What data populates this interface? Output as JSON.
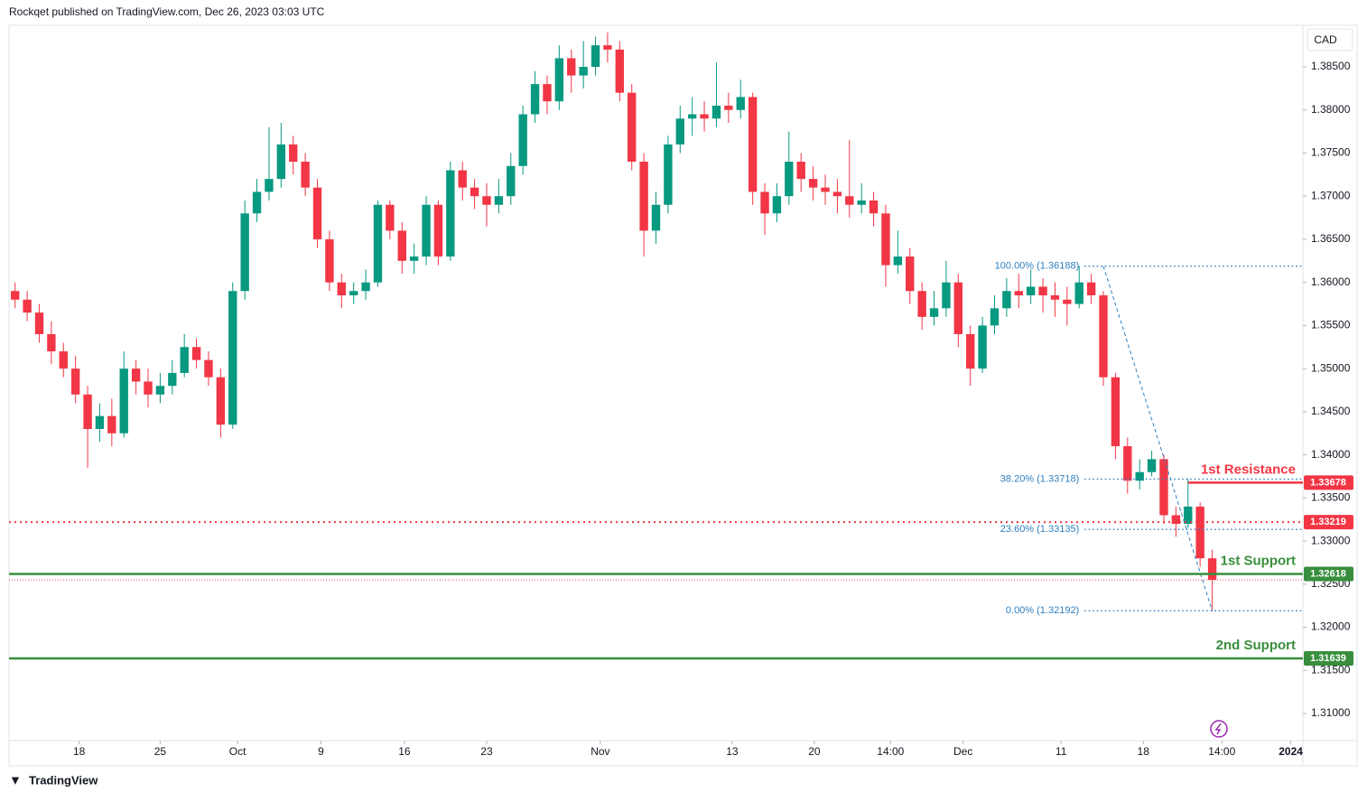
{
  "header": "Rockqet published on TradingView.com, Dec 26, 2023 03:03 UTC",
  "footer": "TradingView",
  "chart_data": {
    "type": "candlestick",
    "currency": "CAD",
    "up_color": "#089981",
    "down_color": "#f23645",
    "ylim": [
      1.30686,
      1.38982
    ],
    "yticks": [
      {
        "value": 1.385,
        "label": "1.38500"
      },
      {
        "value": 1.38,
        "label": "1.38000"
      },
      {
        "value": 1.375,
        "label": "1.37500"
      },
      {
        "value": 1.37,
        "label": "1.37000"
      },
      {
        "value": 1.365,
        "label": "1.36500"
      },
      {
        "value": 1.36,
        "label": "1.36000"
      },
      {
        "value": 1.355,
        "label": "1.35500"
      },
      {
        "value": 1.35,
        "label": "1.35000"
      },
      {
        "value": 1.345,
        "label": "1.34500"
      },
      {
        "value": 1.34,
        "label": "1.34000"
      },
      {
        "value": 1.335,
        "label": "1.33500"
      },
      {
        "value": 1.33,
        "label": "1.33000"
      },
      {
        "value": 1.325,
        "label": "1.32500"
      },
      {
        "value": 1.32,
        "label": "1.32000"
      },
      {
        "value": 1.315,
        "label": "1.31500"
      },
      {
        "value": 1.31,
        "label": "1.31000"
      }
    ],
    "xlim": [
      -0.5,
      106.5
    ],
    "xticks": [
      {
        "value": 5.3,
        "label": "18"
      },
      {
        "value": 12,
        "label": "25"
      },
      {
        "value": 18.4,
        "label": "Oct"
      },
      {
        "value": 25.3,
        "label": "9"
      },
      {
        "value": 32.2,
        "label": "16"
      },
      {
        "value": 39,
        "label": "23"
      },
      {
        "value": 48.4,
        "label": "Nov"
      },
      {
        "value": 59.3,
        "label": "13"
      },
      {
        "value": 66.1,
        "label": "20"
      },
      {
        "value": 72.4,
        "label": "14:00"
      },
      {
        "value": 78.4,
        "label": "Dec"
      },
      {
        "value": 86.5,
        "label": "11"
      },
      {
        "value": 93.3,
        "label": "18"
      },
      {
        "value": 99.8,
        "label": "14:00"
      },
      {
        "value": 105.5,
        "label": "2024"
      }
    ],
    "open": [
      1.359,
      1.358,
      1.3565,
      1.354,
      1.352,
      1.35,
      1.347,
      1.343,
      1.3445,
      1.3425,
      1.35,
      1.3485,
      1.347,
      1.348,
      1.3495,
      1.3525,
      1.351,
      1.349,
      1.3435,
      1.359,
      1.368,
      1.3705,
      1.372,
      1.376,
      1.374,
      1.371,
      1.365,
      1.36,
      1.3585,
      1.359,
      1.36,
      1.369,
      1.366,
      1.3625,
      1.363,
      1.369,
      1.363,
      1.373,
      1.371,
      1.37,
      1.369,
      1.37,
      1.3735,
      1.3795,
      1.383,
      1.381,
      1.386,
      1.384,
      1.385,
      1.3875,
      1.387,
      1.382,
      1.374,
      1.366,
      1.369,
      1.376,
      1.379,
      1.3795,
      1.379,
      1.3805,
      1.38,
      1.3815,
      1.3705,
      1.368,
      1.37,
      1.374,
      1.372,
      1.371,
      1.3705,
      1.37,
      1.369,
      1.3695,
      1.368,
      1.362,
      1.363,
      1.359,
      1.356,
      1.357,
      1.36,
      1.354,
      1.35,
      1.355,
      1.357,
      1.359,
      1.3585,
      1.3595,
      1.3585,
      1.358,
      1.3575,
      1.36,
      1.3585,
      1.349,
      1.341,
      1.337,
      1.338,
      1.3395,
      1.333,
      1.332,
      1.334,
      1.328
    ],
    "high": [
      1.36,
      1.359,
      1.3575,
      1.3555,
      1.353,
      1.3515,
      1.348,
      1.346,
      1.3465,
      1.352,
      1.351,
      1.35,
      1.3495,
      1.351,
      1.354,
      1.3535,
      1.352,
      1.35,
      1.36,
      1.3695,
      1.372,
      1.378,
      1.3785,
      1.377,
      1.375,
      1.372,
      1.366,
      1.361,
      1.36,
      1.3615,
      1.3695,
      1.3695,
      1.367,
      1.3645,
      1.37,
      1.3695,
      1.374,
      1.374,
      1.372,
      1.3715,
      1.372,
      1.375,
      1.3805,
      1.3845,
      1.384,
      1.3875,
      1.387,
      1.388,
      1.3885,
      1.389,
      1.388,
      1.383,
      1.375,
      1.3705,
      1.377,
      1.3805,
      1.3815,
      1.381,
      1.3855,
      1.382,
      1.3835,
      1.382,
      1.3715,
      1.3715,
      1.3775,
      1.375,
      1.3735,
      1.3725,
      1.372,
      1.3765,
      1.3715,
      1.3705,
      1.369,
      1.366,
      1.364,
      1.36,
      1.359,
      1.3625,
      1.361,
      1.355,
      1.356,
      1.3585,
      1.3605,
      1.361,
      1.3615,
      1.3605,
      1.36,
      1.3595,
      1.3619,
      1.361,
      1.359,
      1.3495,
      1.342,
      1.3395,
      1.3405,
      1.34,
      1.334,
      1.3372,
      1.3345,
      1.329
    ],
    "low": [
      1.357,
      1.3555,
      1.353,
      1.3505,
      1.349,
      1.346,
      1.3385,
      1.3415,
      1.341,
      1.342,
      1.347,
      1.3455,
      1.346,
      1.347,
      1.349,
      1.35,
      1.348,
      1.342,
      1.343,
      1.358,
      1.367,
      1.3695,
      1.371,
      1.3725,
      1.37,
      1.364,
      1.359,
      1.357,
      1.3575,
      1.358,
      1.3595,
      1.365,
      1.361,
      1.361,
      1.362,
      1.362,
      1.3625,
      1.3695,
      1.3685,
      1.3665,
      1.368,
      1.369,
      1.3725,
      1.3785,
      1.3795,
      1.38,
      1.382,
      1.3825,
      1.384,
      1.3855,
      1.381,
      1.373,
      1.363,
      1.3645,
      1.368,
      1.375,
      1.377,
      1.3775,
      1.378,
      1.3785,
      1.379,
      1.369,
      1.3655,
      1.367,
      1.369,
      1.3705,
      1.3695,
      1.369,
      1.368,
      1.3675,
      1.368,
      1.3665,
      1.3595,
      1.361,
      1.3575,
      1.3545,
      1.355,
      1.356,
      1.3525,
      1.348,
      1.3495,
      1.354,
      1.356,
      1.357,
      1.3575,
      1.3565,
      1.356,
      1.355,
      1.357,
      1.3575,
      1.348,
      1.3395,
      1.3355,
      1.336,
      1.3375,
      1.332,
      1.3305,
      1.3315,
      1.327,
      1.3219
    ],
    "close": [
      1.358,
      1.3565,
      1.354,
      1.352,
      1.35,
      1.347,
      1.343,
      1.3445,
      1.3425,
      1.35,
      1.3485,
      1.347,
      1.348,
      1.3495,
      1.3525,
      1.351,
      1.349,
      1.3435,
      1.359,
      1.368,
      1.3705,
      1.372,
      1.376,
      1.374,
      1.371,
      1.365,
      1.36,
      1.3585,
      1.359,
      1.36,
      1.369,
      1.366,
      1.3625,
      1.363,
      1.369,
      1.363,
      1.373,
      1.371,
      1.37,
      1.369,
      1.37,
      1.3735,
      1.3795,
      1.383,
      1.381,
      1.386,
      1.384,
      1.385,
      1.3875,
      1.387,
      1.382,
      1.374,
      1.366,
      1.369,
      1.376,
      1.379,
      1.3795,
      1.379,
      1.3805,
      1.38,
      1.3815,
      1.3705,
      1.368,
      1.37,
      1.374,
      1.372,
      1.371,
      1.3705,
      1.37,
      1.369,
      1.3695,
      1.368,
      1.362,
      1.363,
      1.359,
      1.356,
      1.357,
      1.36,
      1.354,
      1.35,
      1.355,
      1.357,
      1.359,
      1.3585,
      1.3595,
      1.3585,
      1.358,
      1.3575,
      1.36,
      1.3585,
      1.349,
      1.341,
      1.337,
      1.338,
      1.3395,
      1.333,
      1.332,
      1.334,
      1.328,
      1.3255
    ],
    "levels": [
      {
        "label": "1st Resistance",
        "value": 1.33678,
        "color": "#f23645",
        "style": "solid",
        "start": 97
      },
      {
        "value": 1.33219,
        "color": "#f23645",
        "style": "dotted"
      },
      {
        "label": "1st Support",
        "value": 1.32618,
        "color": "#388e3c",
        "style": "solid"
      },
      {
        "label": "2nd Support",
        "value": 1.31639,
        "color": "#388e3c",
        "style": "solid"
      }
    ],
    "fib": {
      "color": "#2f7fc1",
      "start": 88,
      "levels": [
        {
          "label": "100.00% (1.36188)",
          "value": 1.36188
        },
        {
          "label": "38.20% (1.33718)",
          "value": 1.33718
        },
        {
          "label": "23.60% (1.33135)",
          "value": 1.33135
        },
        {
          "label": "0.00% (1.32192)",
          "value": 1.32192
        }
      ]
    }
  }
}
